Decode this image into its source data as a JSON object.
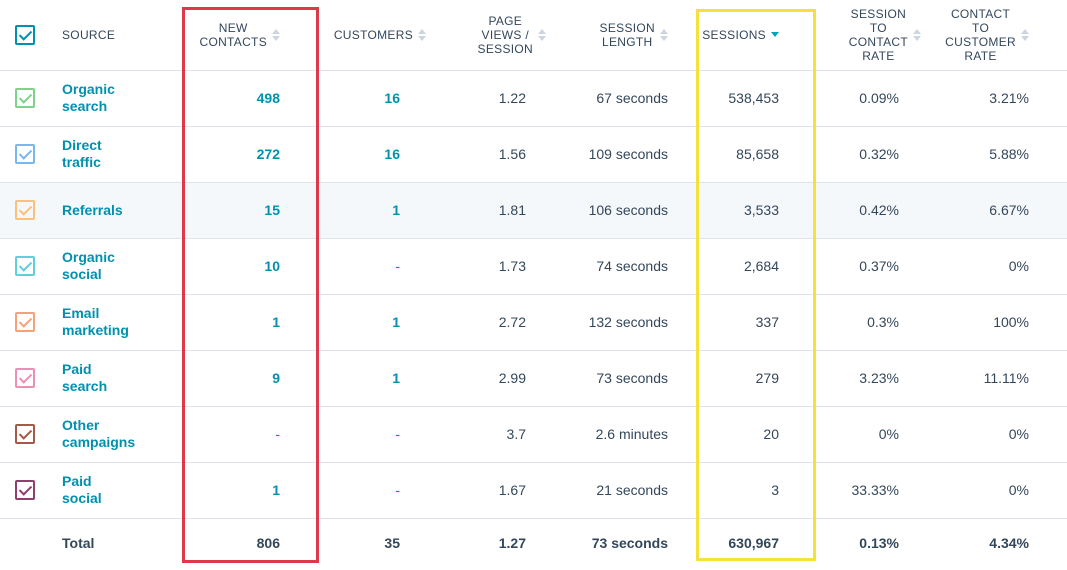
{
  "columns": {
    "source": "SOURCE",
    "new_contacts": [
      "NEW",
      "CONTACTS"
    ],
    "customers": [
      "CUSTOMERS"
    ],
    "page_views": [
      "PAGE",
      "VIEWS /",
      "SESSION"
    ],
    "session_length": [
      "SESSION",
      "LENGTH"
    ],
    "sessions": [
      "SESSIONS"
    ],
    "session_to_contact": [
      "SESSION",
      "TO",
      "CONTACT",
      "RATE"
    ],
    "contact_to_customer": [
      "CONTACT",
      "TO",
      "CUSTOMER",
      "RATE"
    ]
  },
  "rows": [
    {
      "source": "Organic search",
      "color": "#7fd18b",
      "new_contacts": "498",
      "customers": "16",
      "page_views": "1.22",
      "session_length": "67 seconds",
      "sessions": "538,453",
      "stc_rate": "0.09%",
      "ctc_rate": "3.21%"
    },
    {
      "source": "Direct traffic",
      "color": "#7cb7ec",
      "new_contacts": "272",
      "customers": "16",
      "page_views": "1.56",
      "session_length": "109 seconds",
      "sessions": "85,658",
      "stc_rate": "0.32%",
      "ctc_rate": "5.88%"
    },
    {
      "source": "Referrals",
      "color": "#f9c17a",
      "new_contacts": "15",
      "customers": "1",
      "page_views": "1.81",
      "session_length": "106 seconds",
      "sessions": "3,533",
      "stc_rate": "0.42%",
      "ctc_rate": "6.67%"
    },
    {
      "source": "Organic social",
      "color": "#5fcfd9",
      "new_contacts": "10",
      "customers": "-",
      "page_views": "1.73",
      "session_length": "74 seconds",
      "sessions": "2,684",
      "stc_rate": "0.37%",
      "ctc_rate": "0%"
    },
    {
      "source": "Email marketing",
      "color": "#f6a179",
      "new_contacts": "1",
      "customers": "1",
      "page_views": "2.72",
      "session_length": "132 seconds",
      "sessions": "337",
      "stc_rate": "0.3%",
      "ctc_rate": "100%"
    },
    {
      "source": "Paid search",
      "color": "#ec8fb7",
      "new_contacts": "9",
      "customers": "1",
      "page_views": "2.99",
      "session_length": "73 seconds",
      "sessions": "279",
      "stc_rate": "3.23%",
      "ctc_rate": "11.11%"
    },
    {
      "source": "Other campaigns",
      "color": "#a35b49",
      "new_contacts": "-",
      "customers": "-",
      "page_views": "3.7",
      "session_length": "2.6 minutes",
      "sessions": "20",
      "stc_rate": "0%",
      "ctc_rate": "0%"
    },
    {
      "source": "Paid social",
      "color": "#8e3f6d",
      "new_contacts": "1",
      "customers": "-",
      "page_views": "1.67",
      "session_length": "21 seconds",
      "sessions": "3",
      "stc_rate": "33.33%",
      "ctc_rate": "0%"
    }
  ],
  "totals": {
    "label": "Total",
    "new_contacts": "806",
    "customers": "35",
    "page_views": "1.27",
    "session_length": "73 seconds",
    "sessions": "630,967",
    "stc_rate": "0.13%",
    "ctc_rate": "4.34%"
  },
  "highlight_row": 2,
  "colors": {
    "header_checkbox": "#0091ae",
    "link": "#0091ae",
    "sort_active": "#00a4bd",
    "highlight_red": "#e0384b",
    "highlight_yellow": "#f5e13a"
  }
}
